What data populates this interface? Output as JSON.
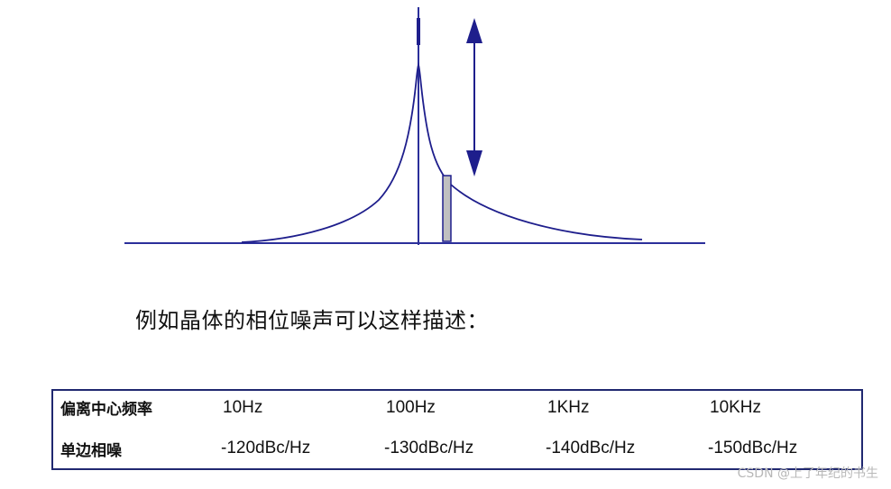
{
  "caption": "例如晶体的相位噪声可以这样描述：",
  "table": {
    "headers": [
      "偏离中心频率",
      "单边相噪"
    ],
    "offsets": [
      "10Hz",
      "100Hz",
      "1KHz",
      "10KHz"
    ],
    "noise": [
      "-120dBc/Hz",
      "-130dBc/Hz",
      "-140dBc/Hz",
      "-150dBc/Hz"
    ]
  },
  "watermark": "CSDN @上了年纪的书生",
  "colors": {
    "line": "#1e1e8c",
    "axis": "#2b2f9a",
    "bar_fill": "#c0c0c0",
    "table_border": "#202870"
  }
}
